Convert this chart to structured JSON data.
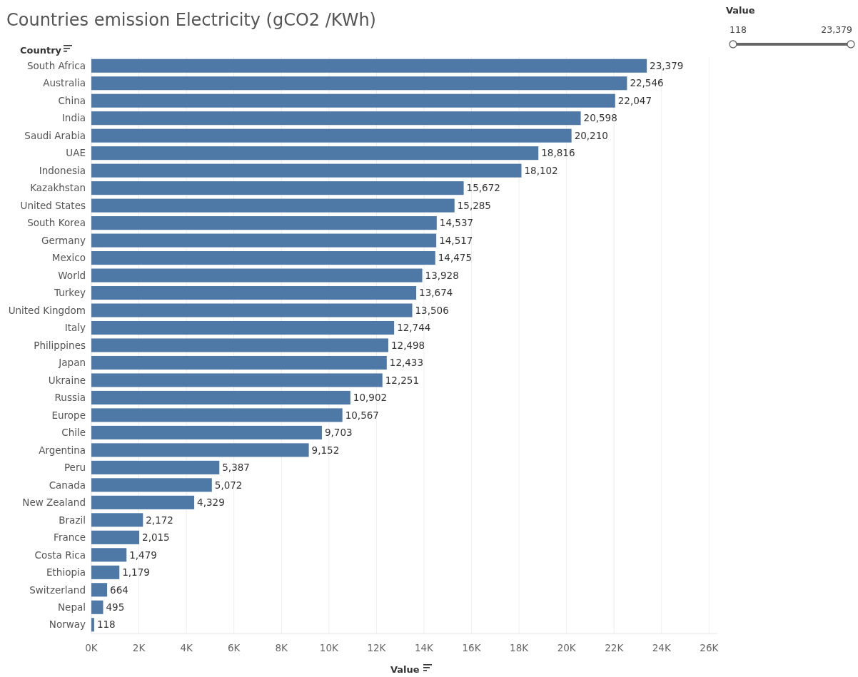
{
  "chart_data": {
    "type": "bar",
    "orientation": "horizontal",
    "title": "Countries emission Electricity (gCO2 /KWh)",
    "xlabel": "Value",
    "ylabel": "Country",
    "categories": [
      "South Africa",
      "Australia",
      "China",
      "India",
      "Saudi Arabia",
      "UAE",
      "Indonesia",
      "Kazakhstan",
      "United States",
      "South Korea",
      "Germany",
      "Mexico",
      "World",
      "Turkey",
      "United Kingdom",
      "Italy",
      "Philippines",
      "Japan",
      "Ukraine",
      "Russia",
      "Europe",
      "Chile",
      "Argentina",
      "Peru",
      "Canada",
      "New Zealand",
      "Brazil",
      "France",
      "Costa Rica",
      "Ethiopia",
      "Switzerland",
      "Nepal",
      "Norway"
    ],
    "values": [
      23379,
      22546,
      22047,
      20598,
      20210,
      18816,
      18102,
      15672,
      15285,
      14537,
      14517,
      14475,
      13928,
      13674,
      13506,
      12744,
      12498,
      12433,
      12251,
      10902,
      10567,
      9703,
      9152,
      5387,
      5072,
      4329,
      2172,
      2015,
      1479,
      1179,
      664,
      495,
      118
    ],
    "value_labels": [
      "23,379",
      "22,546",
      "22,047",
      "20,598",
      "20,210",
      "18,816",
      "18,102",
      "15,672",
      "15,285",
      "14,537",
      "14,517",
      "14,475",
      "13,928",
      "13,674",
      "13,506",
      "12,744",
      "12,498",
      "12,433",
      "12,251",
      "10,902",
      "10,567",
      "9,703",
      "9,152",
      "5,387",
      "5,072",
      "4,329",
      "2,172",
      "2,015",
      "1,479",
      "1,179",
      "664",
      "495",
      "118"
    ],
    "color": "#4e79a7",
    "grid": "x",
    "xlim": [
      0,
      26350
    ],
    "xticks": [
      {
        "value": 0,
        "label": "0K"
      },
      {
        "value": 2000,
        "label": "2K"
      },
      {
        "value": 4000,
        "label": "4K"
      },
      {
        "value": 6000,
        "label": "6K"
      },
      {
        "value": 8000,
        "label": "8K"
      },
      {
        "value": 10000,
        "label": "10K"
      },
      {
        "value": 12000,
        "label": "12K"
      },
      {
        "value": 14000,
        "label": "14K"
      },
      {
        "value": 16000,
        "label": "16K"
      },
      {
        "value": 18000,
        "label": "18K"
      },
      {
        "value": 20000,
        "label": "20K"
      },
      {
        "value": 22000,
        "label": "22K"
      },
      {
        "value": 24000,
        "label": "24K"
      },
      {
        "value": 26000,
        "label": "26K"
      }
    ],
    "annotations": [
      "Value",
      "118",
      "23,379"
    ]
  }
}
